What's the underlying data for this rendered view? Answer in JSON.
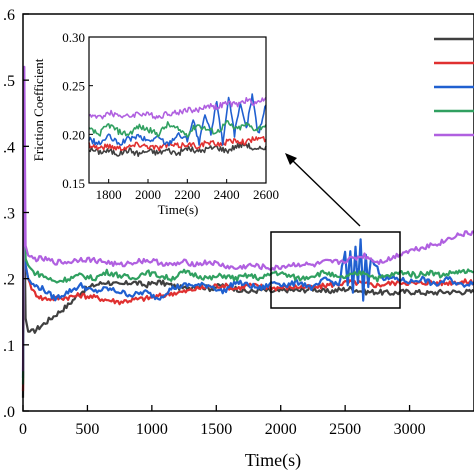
{
  "chart_data": [
    {
      "id": "main",
      "type": "line",
      "xlabel": "Time(s)",
      "ylabel": "",
      "xlim": [
        0,
        3500
      ],
      "ylim": [
        0.0,
        0.6
      ],
      "x_ticks": [
        0,
        500,
        1000,
        1500,
        2000,
        2500,
        3000
      ],
      "x_tick_labels": [
        "0",
        "500",
        "1000",
        "1500",
        "2000",
        "2500",
        "3000"
      ],
      "y_ticks": [
        0.0,
        0.1,
        0.2,
        0.3,
        0.4,
        0.5,
        0.6
      ],
      "y_tick_labels": [
        ".0",
        ".1",
        ".2",
        ".3",
        ".4",
        ".5",
        ".6"
      ],
      "series": [
        {
          "color": "#404040",
          "x": [
            0,
            10,
            20,
            40,
            80,
            150,
            250,
            350,
            450,
            550,
            650,
            750,
            850,
            950,
            1050,
            1150,
            1250,
            1350,
            1450,
            1550,
            1650,
            1750,
            1850,
            1950,
            2050,
            2150,
            2250,
            2350,
            2450,
            2550,
            2650,
            2750,
            2850,
            2950,
            3050,
            3150,
            3250,
            3350,
            3500
          ],
          "y": [
            0.02,
            0.3,
            0.14,
            0.12,
            0.12,
            0.13,
            0.145,
            0.16,
            0.18,
            0.19,
            0.195,
            0.19,
            0.195,
            0.19,
            0.195,
            0.19,
            0.185,
            0.19,
            0.185,
            0.19,
            0.185,
            0.18,
            0.183,
            0.18,
            0.183,
            0.182,
            0.185,
            0.18,
            0.183,
            0.185,
            0.18,
            0.18,
            0.178,
            0.18,
            0.18,
            0.178,
            0.18,
            0.18,
            0.18
          ]
        },
        {
          "color": "#e03030",
          "x": [
            0,
            10,
            20,
            40,
            80,
            150,
            250,
            350,
            450,
            550,
            650,
            750,
            850,
            950,
            1050,
            1150,
            1250,
            1350,
            1450,
            1550,
            1650,
            1750,
            1850,
            1950,
            2050,
            2150,
            2250,
            2350,
            2450,
            2550,
            2650,
            2750,
            2850,
            2950,
            3050,
            3150,
            3250,
            3350,
            3500
          ],
          "y": [
            0.03,
            0.31,
            0.22,
            0.2,
            0.18,
            0.17,
            0.17,
            0.172,
            0.175,
            0.172,
            0.168,
            0.165,
            0.168,
            0.17,
            0.173,
            0.178,
            0.18,
            0.185,
            0.188,
            0.19,
            0.185,
            0.19,
            0.188,
            0.186,
            0.187,
            0.188,
            0.186,
            0.19,
            0.192,
            0.195,
            0.192,
            0.19,
            0.193,
            0.195,
            0.192,
            0.195,
            0.193,
            0.195,
            0.195
          ]
        },
        {
          "color": "#2060d0",
          "x": [
            0,
            10,
            20,
            40,
            80,
            150,
            250,
            350,
            450,
            550,
            650,
            750,
            850,
            950,
            1050,
            1150,
            1250,
            1350,
            1450,
            1550,
            1650,
            1750,
            1850,
            1950,
            2050,
            2150,
            2250,
            2350,
            2450,
            2500,
            2520,
            2540,
            2560,
            2580,
            2600,
            2620,
            2640,
            2660,
            2680,
            2700,
            2800,
            2900,
            3000,
            3100,
            3200,
            3300,
            3400,
            3500
          ],
          "y": [
            0.05,
            0.35,
            0.22,
            0.2,
            0.19,
            0.185,
            0.17,
            0.18,
            0.19,
            0.18,
            0.185,
            0.18,
            0.175,
            0.18,
            0.17,
            0.185,
            0.19,
            0.19,
            0.19,
            0.18,
            0.195,
            0.19,
            0.185,
            0.195,
            0.19,
            0.195,
            0.185,
            0.2,
            0.19,
            0.24,
            0.19,
            0.24,
            0.18,
            0.245,
            0.19,
            0.26,
            0.17,
            0.24,
            0.19,
            0.23,
            0.2,
            0.2,
            0.195,
            0.2,
            0.19,
            0.2,
            0.19,
            0.195
          ]
        },
        {
          "color": "#30a060",
          "x": [
            0,
            10,
            20,
            40,
            80,
            150,
            250,
            350,
            450,
            550,
            650,
            750,
            850,
            950,
            1050,
            1150,
            1250,
            1350,
            1450,
            1550,
            1650,
            1750,
            1850,
            1950,
            2050,
            2150,
            2250,
            2350,
            2450,
            2550,
            2650,
            2750,
            2850,
            2950,
            3050,
            3150,
            3250,
            3350,
            3500
          ],
          "y": [
            0.04,
            0.33,
            0.23,
            0.22,
            0.21,
            0.205,
            0.195,
            0.2,
            0.205,
            0.2,
            0.21,
            0.205,
            0.2,
            0.21,
            0.205,
            0.2,
            0.21,
            0.205,
            0.2,
            0.205,
            0.2,
            0.205,
            0.2,
            0.21,
            0.205,
            0.2,
            0.205,
            0.21,
            0.2,
            0.205,
            0.21,
            0.2,
            0.205,
            0.21,
            0.205,
            0.21,
            0.205,
            0.21,
            0.21
          ]
        },
        {
          "color": "#b060e0",
          "x": [
            0,
            10,
            20,
            40,
            80,
            150,
            250,
            350,
            450,
            550,
            650,
            750,
            850,
            950,
            1050,
            1150,
            1250,
            1350,
            1450,
            1550,
            1650,
            1750,
            1850,
            1950,
            2050,
            2150,
            2250,
            2350,
            2450,
            2550,
            2650,
            2750,
            2850,
            2950,
            3050,
            3150,
            3250,
            3350,
            3500
          ],
          "y": [
            0.06,
            0.52,
            0.25,
            0.235,
            0.23,
            0.23,
            0.225,
            0.225,
            0.23,
            0.228,
            0.225,
            0.22,
            0.225,
            0.228,
            0.225,
            0.22,
            0.225,
            0.222,
            0.225,
            0.22,
            0.215,
            0.22,
            0.218,
            0.215,
            0.22,
            0.222,
            0.22,
            0.225,
            0.225,
            0.23,
            0.235,
            0.225,
            0.23,
            0.24,
            0.245,
            0.25,
            0.255,
            0.265,
            0.27
          ]
        }
      ]
    },
    {
      "id": "inset",
      "type": "line",
      "xlabel": "Time(s)",
      "ylabel": "Friction Coefficient",
      "xlim": [
        1700,
        2600
      ],
      "ylim": [
        0.15,
        0.3
      ],
      "x_ticks": [
        1800,
        2000,
        2200,
        2400,
        2600
      ],
      "x_tick_labels": [
        "1800",
        "2000",
        "2200",
        "2400",
        "2600"
      ],
      "y_ticks": [
        0.15,
        0.2,
        0.25,
        0.3
      ],
      "y_tick_labels": [
        "0.15",
        "0.20",
        "0.25",
        "0.30"
      ],
      "series": [
        {
          "color": "#404040",
          "x": [
            1700,
            1750,
            1800,
            1850,
            1900,
            1950,
            2000,
            2050,
            2100,
            2150,
            2200,
            2250,
            2300,
            2350,
            2400,
            2450,
            2500,
            2550,
            2600
          ],
          "y": [
            0.185,
            0.182,
            0.183,
            0.18,
            0.184,
            0.18,
            0.183,
            0.181,
            0.184,
            0.18,
            0.186,
            0.182,
            0.185,
            0.187,
            0.183,
            0.188,
            0.19,
            0.183,
            0.188
          ]
        },
        {
          "color": "#e03030",
          "x": [
            1700,
            1750,
            1800,
            1850,
            1900,
            1950,
            2000,
            2050,
            2100,
            2150,
            2200,
            2250,
            2300,
            2350,
            2400,
            2450,
            2500,
            2550,
            2600
          ],
          "y": [
            0.19,
            0.186,
            0.188,
            0.186,
            0.187,
            0.19,
            0.188,
            0.186,
            0.189,
            0.188,
            0.19,
            0.188,
            0.191,
            0.19,
            0.192,
            0.194,
            0.192,
            0.196,
            0.195
          ]
        },
        {
          "color": "#2060d0",
          "x": [
            1700,
            1750,
            1800,
            1850,
            1900,
            1950,
            2000,
            2050,
            2100,
            2150,
            2200,
            2230,
            2260,
            2290,
            2320,
            2350,
            2380,
            2410,
            2440,
            2470,
            2500,
            2530,
            2560,
            2600
          ],
          "y": [
            0.195,
            0.19,
            0.198,
            0.19,
            0.195,
            0.198,
            0.193,
            0.197,
            0.19,
            0.2,
            0.195,
            0.215,
            0.19,
            0.22,
            0.2,
            0.235,
            0.19,
            0.24,
            0.2,
            0.23,
            0.205,
            0.24,
            0.2,
            0.23
          ]
        },
        {
          "color": "#30a060",
          "x": [
            1700,
            1750,
            1800,
            1850,
            1900,
            1950,
            2000,
            2050,
            2100,
            2150,
            2200,
            2250,
            2300,
            2350,
            2400,
            2450,
            2500,
            2550,
            2600
          ],
          "y": [
            0.205,
            0.2,
            0.21,
            0.203,
            0.2,
            0.208,
            0.205,
            0.2,
            0.21,
            0.205,
            0.2,
            0.21,
            0.205,
            0.202,
            0.212,
            0.205,
            0.21,
            0.205,
            0.21
          ]
        },
        {
          "color": "#b060e0",
          "x": [
            1700,
            1750,
            1800,
            1850,
            1900,
            1950,
            2000,
            2050,
            2100,
            2150,
            2200,
            2250,
            2300,
            2350,
            2400,
            2450,
            2500,
            2550,
            2600
          ],
          "y": [
            0.22,
            0.217,
            0.222,
            0.22,
            0.218,
            0.222,
            0.22,
            0.218,
            0.222,
            0.222,
            0.226,
            0.224,
            0.23,
            0.228,
            0.232,
            0.23,
            0.235,
            0.232,
            0.238
          ]
        }
      ]
    }
  ]
}
